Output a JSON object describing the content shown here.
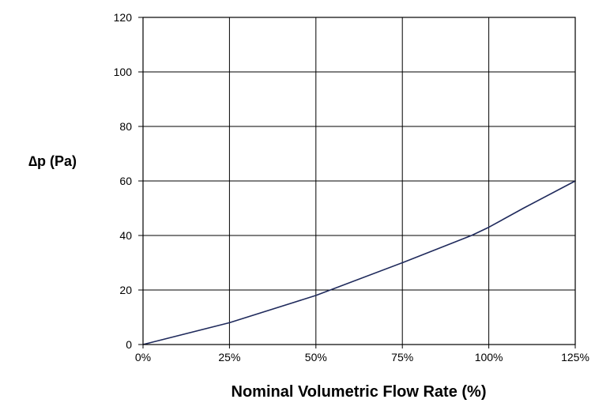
{
  "chart_data": {
    "type": "line",
    "title": "",
    "xlabel": "Nominal Volumetric Flow Rate (%)",
    "ylabel": "∆p (Pa)",
    "xlim": [
      0,
      125
    ],
    "ylim": [
      0,
      120
    ],
    "x_ticks": [
      0,
      25,
      50,
      75,
      100,
      125
    ],
    "x_tick_labels": [
      "0%",
      "25%",
      "50%",
      "75%",
      "100%",
      "125%"
    ],
    "y_ticks": [
      0,
      20,
      40,
      60,
      80,
      100,
      120
    ],
    "y_tick_labels": [
      "0",
      "20",
      "40",
      "60",
      "80",
      "100",
      "120"
    ],
    "grid": true,
    "legend": "none",
    "line_color": "#1f2a5c",
    "series": [
      {
        "x": [
          0,
          25,
          50,
          75,
          95,
          100,
          110,
          125
        ],
        "y": [
          0,
          8,
          18,
          30,
          40,
          43,
          50,
          60
        ]
      }
    ]
  }
}
